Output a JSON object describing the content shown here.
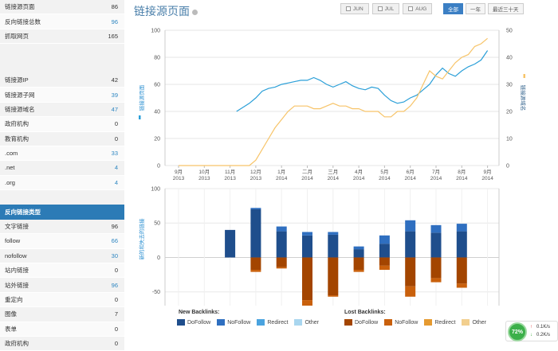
{
  "sidebar": {
    "group1": [
      {
        "label": "链接源页面",
        "value": "86",
        "blue": false
      },
      {
        "label": "反向链接总数",
        "value": "96",
        "blue": true
      },
      {
        "label": "抓取网页",
        "value": "165",
        "blue": false
      }
    ],
    "group2": [
      {
        "label": "链接源IP",
        "value": "42",
        "blue": false
      },
      {
        "label": "链接源子网",
        "value": "39",
        "blue": true
      },
      {
        "label": "链接源域名",
        "value": "47",
        "blue": true
      },
      {
        "label": "政府机构",
        "value": "0",
        "blue": false
      },
      {
        "label": "教育机构",
        "value": "0",
        "blue": false
      },
      {
        "label": ".com",
        "value": "33",
        "blue": true
      },
      {
        "label": ".net",
        "value": "4",
        "blue": true
      },
      {
        "label": ".org",
        "value": "4",
        "blue": true
      }
    ],
    "section_header": "反向链接类型",
    "group3": [
      {
        "label": "文字链接",
        "value": "96",
        "blue": false
      },
      {
        "label": "follow",
        "value": "66",
        "blue": true
      },
      {
        "label": "nofollow",
        "value": "30",
        "blue": true
      },
      {
        "label": "站内链接",
        "value": "0",
        "blue": false
      },
      {
        "label": "站外链接",
        "value": "96",
        "blue": true
      },
      {
        "label": "重定向",
        "value": "0",
        "blue": false
      },
      {
        "label": "图像",
        "value": "7",
        "blue": false
      },
      {
        "label": "表单",
        "value": "0",
        "blue": false
      },
      {
        "label": "政府机构",
        "value": "0",
        "blue": false
      }
    ]
  },
  "header": {
    "title": "链接源页面",
    "month_buttons": [
      "JUN",
      "JUL",
      "AUG"
    ],
    "range_buttons": [
      {
        "label": "全部",
        "active": true
      },
      {
        "label": "一年",
        "active": false
      },
      {
        "label": "最近三十天",
        "active": false
      }
    ]
  },
  "chart_data": [
    {
      "type": "line",
      "x_ticks": [
        [
          "9月",
          "2013"
        ],
        [
          "10月",
          "2013"
        ],
        [
          "11月",
          "2013"
        ],
        [
          "12月",
          "2013"
        ],
        [
          "1月",
          "2014"
        ],
        [
          "二月",
          "2014"
        ],
        [
          "三月",
          "2014"
        ],
        [
          "4月",
          "2014"
        ],
        [
          "5月",
          "2014"
        ],
        [
          "6月",
          "2014"
        ],
        [
          "7月",
          "2014"
        ],
        [
          "8月",
          "2014"
        ],
        [
          "9月",
          "2014"
        ]
      ],
      "left_axis": {
        "label": "链接源页面",
        "ticks": [
          0,
          20,
          40,
          60,
          80,
          100
        ],
        "ylim": [
          0,
          100
        ]
      },
      "right_axis": {
        "label": "链接源域名",
        "ticks": [
          0,
          10,
          20,
          30,
          40,
          50
        ],
        "ylim": [
          0,
          50
        ]
      },
      "series": [
        {
          "name": "链接源页面",
          "color": "#2a9fd8",
          "axis": "left",
          "x": [
            2.25,
            2.5,
            2.75,
            3.0,
            3.25,
            3.5,
            3.75,
            4.0,
            4.25,
            4.5,
            4.75,
            5.0,
            5.25,
            5.5,
            5.75,
            6.0,
            6.25,
            6.5,
            6.75,
            7.0,
            7.25,
            7.5,
            7.75,
            8.0,
            8.25,
            8.5,
            8.75,
            9.0,
            9.25,
            9.5,
            9.75,
            10.0,
            10.25,
            10.5,
            10.75,
            11.0,
            11.25,
            11.5,
            11.75,
            12.0
          ],
          "y": [
            40,
            43,
            46,
            50,
            55,
            57,
            58,
            60,
            61,
            62,
            63,
            63,
            65,
            63,
            60,
            58,
            60,
            62,
            59,
            57,
            56,
            58,
            57,
            52,
            48,
            46,
            47,
            50,
            52,
            56,
            60,
            67,
            72,
            68,
            66,
            70,
            73,
            75,
            78,
            85
          ]
        },
        {
          "name": "链接源域名",
          "color": "#f7c469",
          "axis": "right",
          "x": [
            0,
            1,
            2,
            2.75,
            3.0,
            3.25,
            3.5,
            3.75,
            4.0,
            4.25,
            4.5,
            4.75,
            5.0,
            5.25,
            5.5,
            5.75,
            6.0,
            6.25,
            6.5,
            6.75,
            7.0,
            7.25,
            7.5,
            7.75,
            8.0,
            8.25,
            8.5,
            8.75,
            9.0,
            9.25,
            9.5,
            9.75,
            10.0,
            10.25,
            10.5,
            10.75,
            11.0,
            11.25,
            11.5,
            11.75,
            12.0
          ],
          "y": [
            0,
            0,
            0,
            0,
            2,
            6,
            10,
            14,
            17,
            20,
            22,
            22,
            22,
            21,
            21,
            22,
            23,
            22,
            22,
            21,
            21,
            20,
            20,
            20,
            18,
            18,
            20,
            20,
            22,
            25,
            30,
            35,
            33,
            32,
            35,
            38,
            40,
            41,
            44,
            45,
            47
          ]
        }
      ]
    },
    {
      "type": "bar",
      "y_axis": {
        "label": "新的和失去的链接",
        "ticks": [
          100,
          50,
          0,
          -50
        ],
        "ylim": [
          -70,
          100
        ]
      },
      "x": [
        2,
        3,
        4,
        5,
        6,
        7,
        8,
        9,
        10,
        11
      ],
      "new_series": [
        {
          "name": "DoFollow",
          "color": "#1f4e8c",
          "values": [
            40,
            70,
            38,
            32,
            33,
            12,
            20,
            38,
            36,
            38
          ]
        },
        {
          "name": "NoFollow",
          "color": "#2f6fc0",
          "values": [
            0,
            2,
            7,
            5,
            4,
            4,
            12,
            16,
            11,
            11
          ]
        },
        {
          "name": "Redirect",
          "color": "#4aa3df",
          "values": [
            0,
            0,
            0,
            0,
            0,
            0,
            0,
            0,
            0,
            0
          ]
        },
        {
          "name": "Other",
          "color": "#a9d6ef",
          "values": [
            0,
            0,
            0,
            0,
            0,
            0,
            0,
            0,
            0,
            0
          ]
        }
      ],
      "lost_series": [
        {
          "name": "DoFollow",
          "color": "#a34500",
          "values": [
            0,
            -18,
            -14,
            -62,
            -55,
            -18,
            -12,
            -42,
            -30,
            -38
          ]
        },
        {
          "name": "NoFollow",
          "color": "#c9600c",
          "values": [
            0,
            -3,
            -2,
            -8,
            -2,
            -3,
            -6,
            -15,
            -6,
            -6
          ]
        },
        {
          "name": "Redirect",
          "color": "#e59a30",
          "values": [
            0,
            0,
            0,
            0,
            0,
            0,
            0,
            0,
            0,
            0
          ]
        },
        {
          "name": "Other",
          "color": "#f2cf8e",
          "values": [
            0,
            0,
            0,
            0,
            0,
            0,
            0,
            0,
            0,
            0
          ]
        }
      ]
    }
  ],
  "legend": {
    "new_title": "New Backlinks:",
    "lost_title": "Lost Backlinks:",
    "new_items": [
      {
        "label": "DoFollow",
        "color": "#1f4e8c"
      },
      {
        "label": "NoFollow",
        "color": "#2f6fc0"
      },
      {
        "label": "Redirect",
        "color": "#4aa3df"
      },
      {
        "label": "Other",
        "color": "#a9d6ef"
      }
    ],
    "lost_items": [
      {
        "label": "DoFollow",
        "color": "#a34500"
      },
      {
        "label": "NoFollow",
        "color": "#c9600c"
      },
      {
        "label": "Redirect",
        "color": "#e59a30"
      },
      {
        "label": "Other",
        "color": "#f2cf8e"
      }
    ]
  },
  "status_widget": {
    "percent": "72%",
    "upload": "0.1K/s",
    "download": "0.2K/s"
  }
}
